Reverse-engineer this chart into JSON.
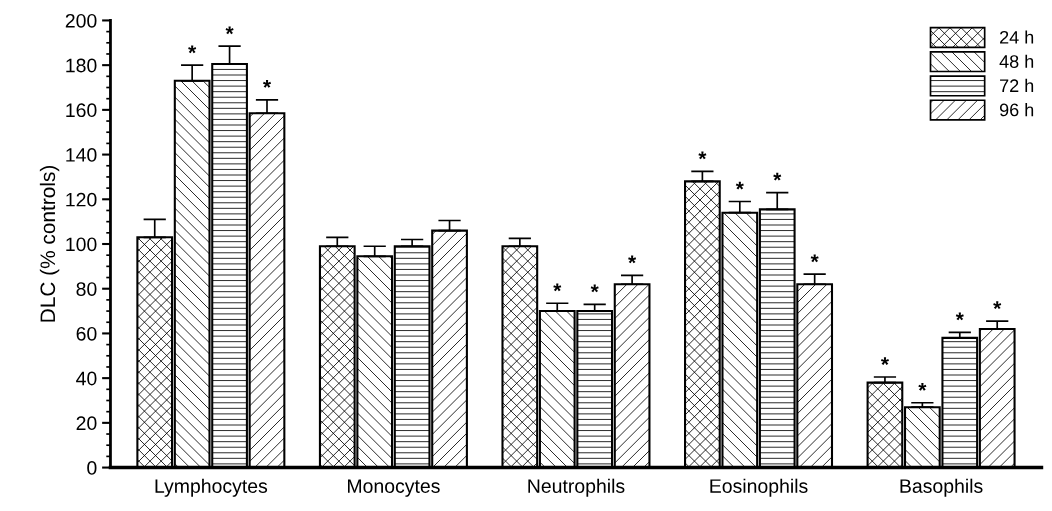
{
  "chart_data": {
    "type": "bar",
    "ylabel": "DLC (% controls)",
    "categories": [
      "Lymphocytes",
      "Monocytes",
      "Neutrophils",
      "Eosinophils",
      "Basophils"
    ],
    "series": [
      {
        "name": "24 h",
        "color": "#000000",
        "values": [
          103,
          99,
          99,
          128,
          38
        ],
        "errors": [
          8,
          4,
          3.5,
          4.5,
          2.5
        ],
        "value_labels": [
          null,
          null,
          null,
          "*",
          "*"
        ]
      },
      {
        "name": "48 h",
        "color": "#000000",
        "values": [
          173,
          94.5,
          70,
          114,
          27
        ],
        "errors": [
          7,
          4.5,
          3.5,
          5,
          2
        ],
        "value_labels": [
          "*",
          null,
          "*",
          "*",
          "*"
        ]
      },
      {
        "name": "72 h",
        "color": "#000000",
        "values": [
          180.5,
          99,
          70,
          115.5,
          58
        ],
        "errors": [
          8,
          3,
          3,
          7.5,
          2.5
        ],
        "value_labels": [
          "*",
          null,
          "*",
          "*",
          "*"
        ]
      },
      {
        "name": "96 h",
        "color": "#000000",
        "values": [
          158.5,
          106,
          82,
          82,
          62
        ],
        "errors": [
          6,
          4.5,
          4,
          4.5,
          3.5
        ],
        "value_labels": [
          "*",
          null,
          "*",
          "*",
          "*"
        ]
      }
    ],
    "ylim": [
      0,
      200
    ],
    "yticks": [
      0,
      20,
      40,
      60,
      80,
      100,
      120,
      140,
      160,
      180,
      200
    ],
    "grid": false,
    "legend": "top right"
  }
}
